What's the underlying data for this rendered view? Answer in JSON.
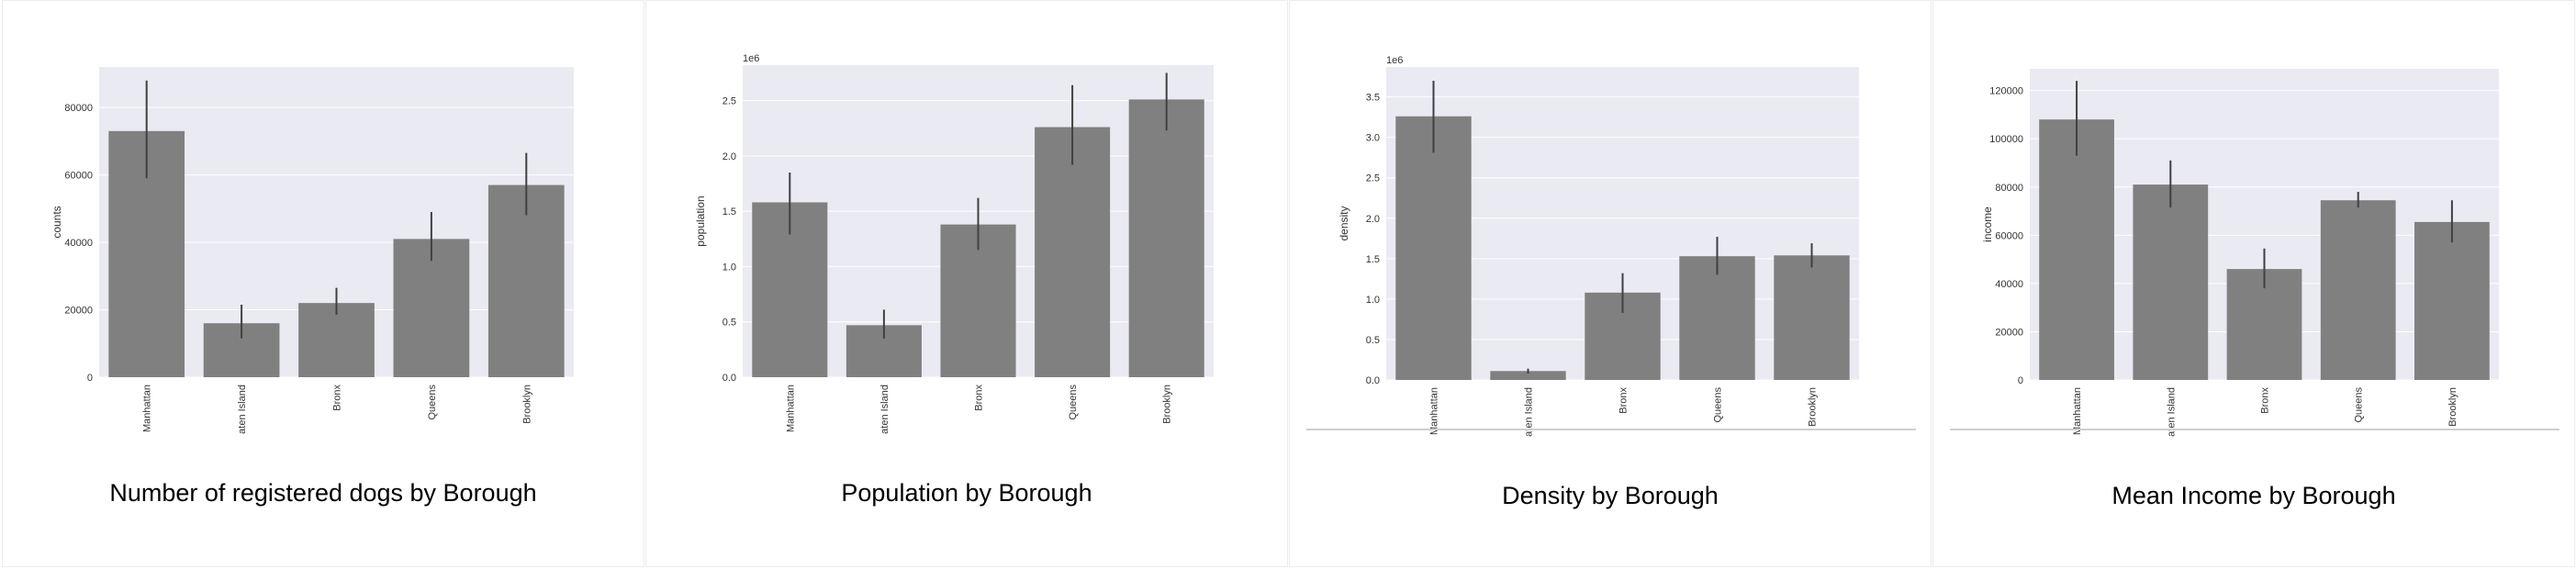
{
  "chart_data": [
    {
      "type": "bar",
      "title": "Number of registered dogs by Borough",
      "ylabel": "counts",
      "scale_note": "",
      "categories": [
        "Manhattan",
        "aten Island",
        "Bronx",
        "Queens",
        "Brooklyn"
      ],
      "values": [
        73000,
        16000,
        22000,
        41000,
        57000
      ],
      "error_low": [
        59000,
        11500,
        18500,
        34500,
        48000
      ],
      "error_high": [
        88000,
        21500,
        26500,
        49000,
        66500
      ],
      "ylim": [
        0,
        92000
      ],
      "yticks": [
        0,
        20000,
        40000,
        60000,
        80000
      ],
      "ytick_labels": [
        "0",
        "20000",
        "40000",
        "60000",
        "80000"
      ],
      "grid": true,
      "bar_color": "#808080"
    },
    {
      "type": "bar",
      "title": "Population by Borough",
      "ylabel": "population",
      "scale_note": "1e6",
      "categories": [
        "Manhattan",
        "aten Island",
        "Bronx",
        "Queens",
        "Brooklyn"
      ],
      "values": [
        1.58,
        0.47,
        1.38,
        2.26,
        2.51
      ],
      "error_low": [
        1.29,
        0.35,
        1.15,
        1.92,
        2.23
      ],
      "error_high": [
        1.85,
        0.61,
        1.62,
        2.64,
        2.75
      ],
      "ylim": [
        0,
        2.82
      ],
      "yticks": [
        0.0,
        0.5,
        1.0,
        1.5,
        2.0,
        2.5
      ],
      "ytick_labels": [
        "0.0",
        "0.5",
        "1.0",
        "1.5",
        "2.0",
        "2.5"
      ],
      "grid": true,
      "bar_color": "#808080"
    },
    {
      "type": "bar",
      "title": "Density by Borough",
      "ylabel": "density",
      "scale_note": "1e6",
      "categories": [
        "Manhattan",
        "aten Island",
        "Bronx",
        "Queens",
        "Brooklyn"
      ],
      "values": [
        3.26,
        0.11,
        1.08,
        1.53,
        1.54
      ],
      "error_low": [
        2.81,
        0.08,
        0.83,
        1.3,
        1.39
      ],
      "error_high": [
        3.7,
        0.14,
        1.32,
        1.77,
        1.69
      ],
      "ylim": [
        0,
        3.87
      ],
      "yticks": [
        0.0,
        0.5,
        1.0,
        1.5,
        2.0,
        2.5,
        3.0,
        3.5
      ],
      "ytick_labels": [
        "0.0",
        "0.5",
        "1.0",
        "1.5",
        "2.0",
        "2.5",
        "3.0",
        "3.5"
      ],
      "grid": true,
      "bar_color": "#808080"
    },
    {
      "type": "bar",
      "title": "Mean Income by Borough",
      "ylabel": "income",
      "scale_note": "",
      "categories": [
        "Manhattan",
        "aten Island",
        "Bronx",
        "Queens",
        "Brooklyn"
      ],
      "values": [
        108000,
        81000,
        46000,
        74500,
        65500
      ],
      "error_low": [
        93000,
        71500,
        38000,
        71500,
        57000
      ],
      "error_high": [
        124000,
        91000,
        54500,
        78000,
        74500
      ],
      "ylim": [
        0,
        129000
      ],
      "yticks": [
        0,
        20000,
        40000,
        60000,
        80000,
        100000,
        120000
      ],
      "ytick_labels": [
        "0",
        "20000",
        "40000",
        "60000",
        "80000",
        "100000",
        "120000"
      ],
      "grid": true,
      "bar_color": "#808080"
    }
  ]
}
